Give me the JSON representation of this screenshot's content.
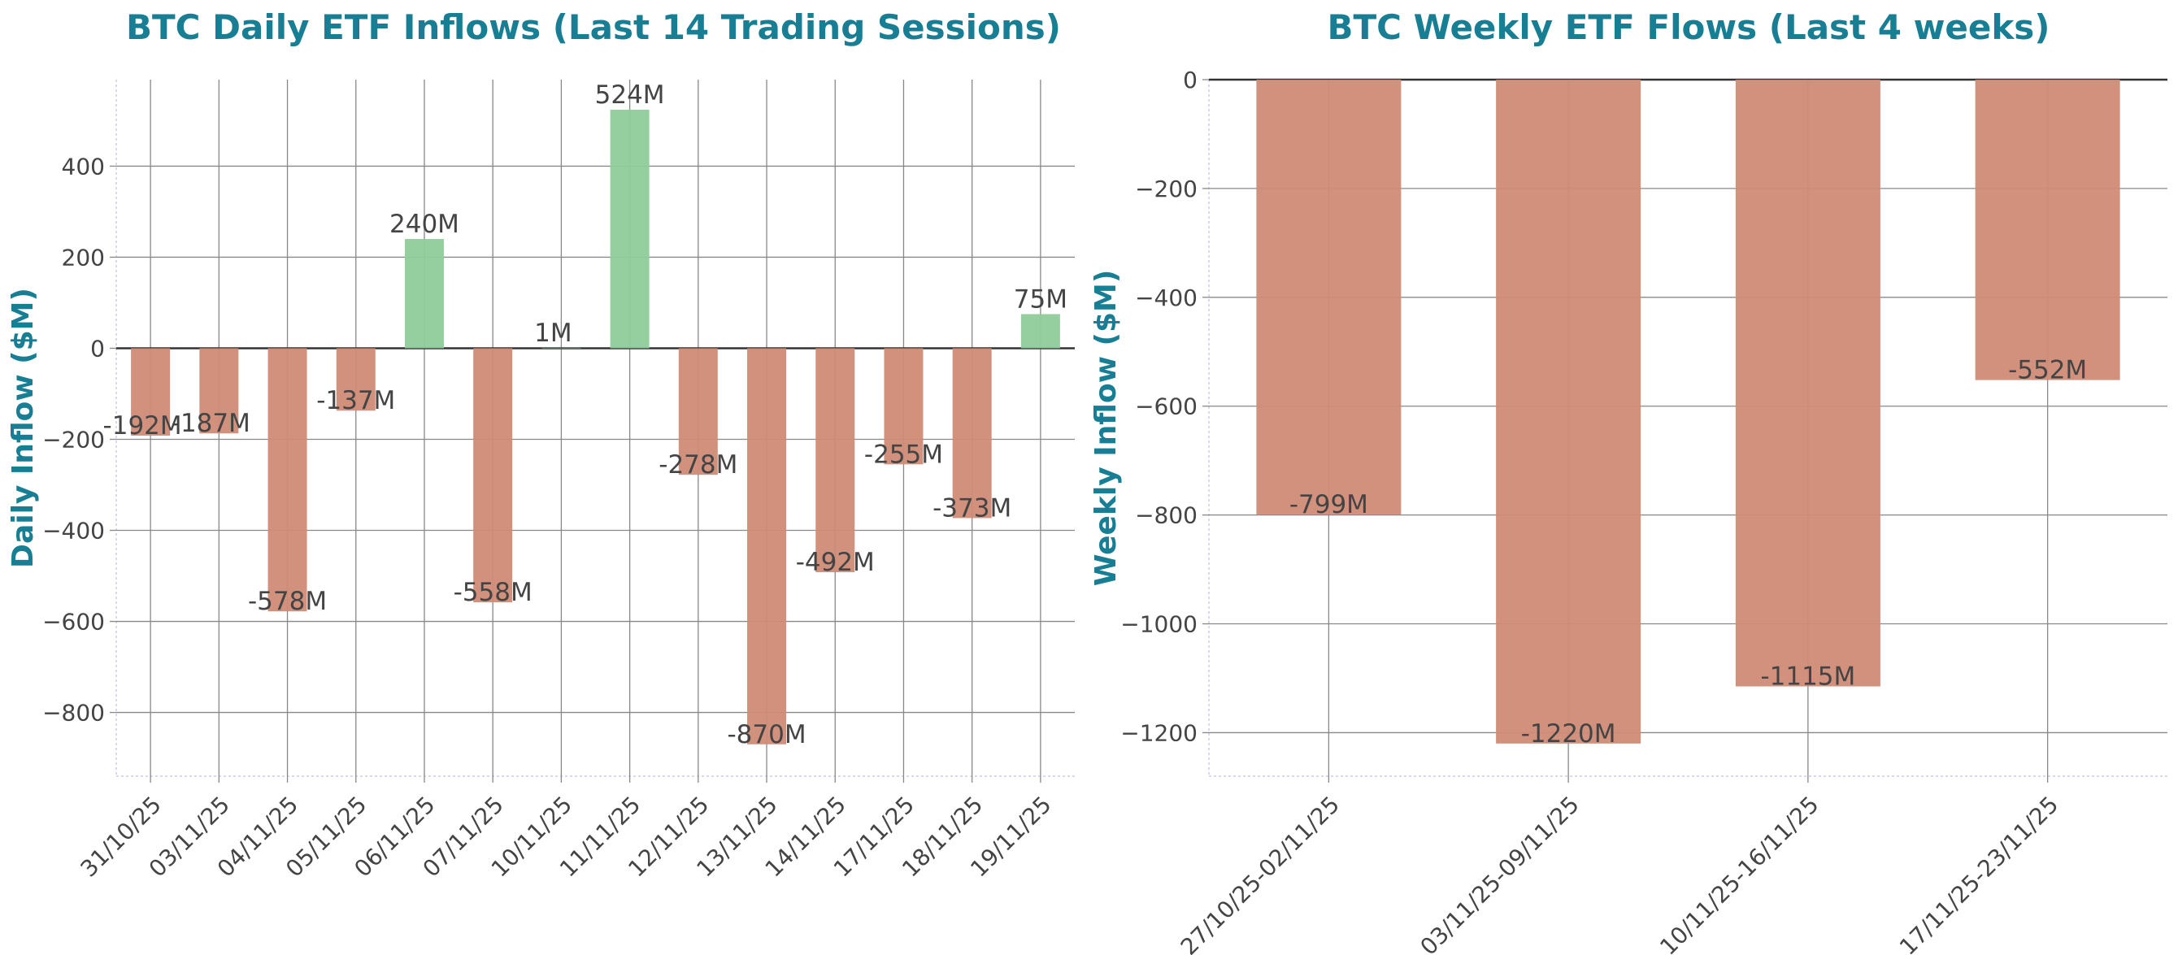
{
  "chart_data": [
    {
      "type": "bar",
      "title": "BTC Daily ETF Inflows (Last 14 Trading Sessions)",
      "xlabel": "",
      "ylabel": "Daily Inflow ($M)",
      "categories": [
        "31/10/25",
        "03/11/25",
        "04/11/25",
        "05/11/25",
        "06/11/25",
        "07/11/25",
        "10/11/25",
        "11/11/25",
        "12/11/25",
        "13/11/25",
        "14/11/25",
        "17/11/25",
        "18/11/25",
        "19/11/25"
      ],
      "values": [
        -192,
        -187,
        -578,
        -137,
        240,
        -558,
        1,
        524,
        -278,
        -870,
        -492,
        -255,
        -373,
        75
      ],
      "data_labels": [
        "-192M",
        "-187M",
        "-578M",
        "-137M",
        "240M",
        "-558M",
        "1M",
        "524M",
        "-278M",
        "-870M",
        "-492M",
        "-255M",
        "-373M",
        "75M"
      ],
      "ylim": [
        -940,
        590
      ],
      "yticks": [
        400,
        200,
        0,
        -200,
        -400,
        -600,
        -800
      ],
      "ytick_labels": [
        "400",
        "200",
        "0",
        "−200",
        "−400",
        "−600",
        "−800"
      ],
      "grid": true,
      "colors": {
        "positive": "#8fcc9b",
        "negative": "#d08b75",
        "title": "#177e93"
      }
    },
    {
      "type": "bar",
      "title": "BTC Weekly ETF Flows (Last 4 weeks)",
      "xlabel": "",
      "ylabel": "Weekly Inflow ($M)",
      "categories": [
        "27/10/25-02/11/25",
        "03/11/25-09/11/25",
        "10/11/25-16/11/25",
        "17/11/25-23/11/25"
      ],
      "values": [
        -799,
        -1220,
        -1115,
        -552
      ],
      "data_labels": [
        "-799M",
        "-1220M",
        "-1115M",
        "-552M"
      ],
      "ylim": [
        -1280,
        0
      ],
      "yticks": [
        0,
        -200,
        -400,
        -600,
        -800,
        -1000,
        -1200
      ],
      "ytick_labels": [
        "0",
        "−200",
        "−400",
        "−600",
        "−800",
        "−1000",
        "−1200"
      ],
      "grid": true,
      "colors": {
        "positive": "#8fcc9b",
        "negative": "#d08b75",
        "title": "#177e93"
      }
    }
  ]
}
